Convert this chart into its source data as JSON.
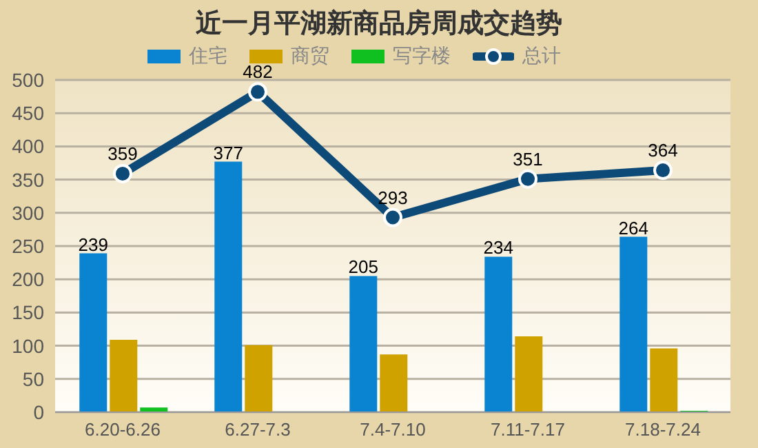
{
  "chart_data": {
    "type": "bar",
    "title": "近一月平湖新商品房周成交趋势",
    "categories": [
      "6.20-6.26",
      "6.27-7.3",
      "7.4-7.10",
      "7.11-7.17",
      "7.18-7.24"
    ],
    "series": [
      {
        "name": "住宅",
        "color": "#0a84d0",
        "values": [
          239,
          377,
          205,
          234,
          264
        ],
        "value_labels": [
          "239",
          "377",
          "205",
          "234",
          "264"
        ]
      },
      {
        "name": "商贸",
        "color": "#cfa200",
        "values": [
          109,
          101,
          87,
          114,
          96
        ]
      },
      {
        "name": "写字楼",
        "color": "#10c020",
        "values": [
          7,
          0,
          0,
          0,
          2
        ]
      },
      {
        "name": "总计",
        "type": "line",
        "color": "#0d4a78",
        "values": [
          359,
          482,
          293,
          351,
          364
        ],
        "value_labels": [
          "359",
          "482",
          "293",
          "351",
          "364"
        ]
      }
    ],
    "ylim": [
      0,
      500
    ],
    "yticks": [
      0,
      50,
      100,
      150,
      200,
      250,
      300,
      350,
      400,
      450,
      500
    ],
    "grid": "y",
    "legend": "top",
    "marker": "circle"
  }
}
